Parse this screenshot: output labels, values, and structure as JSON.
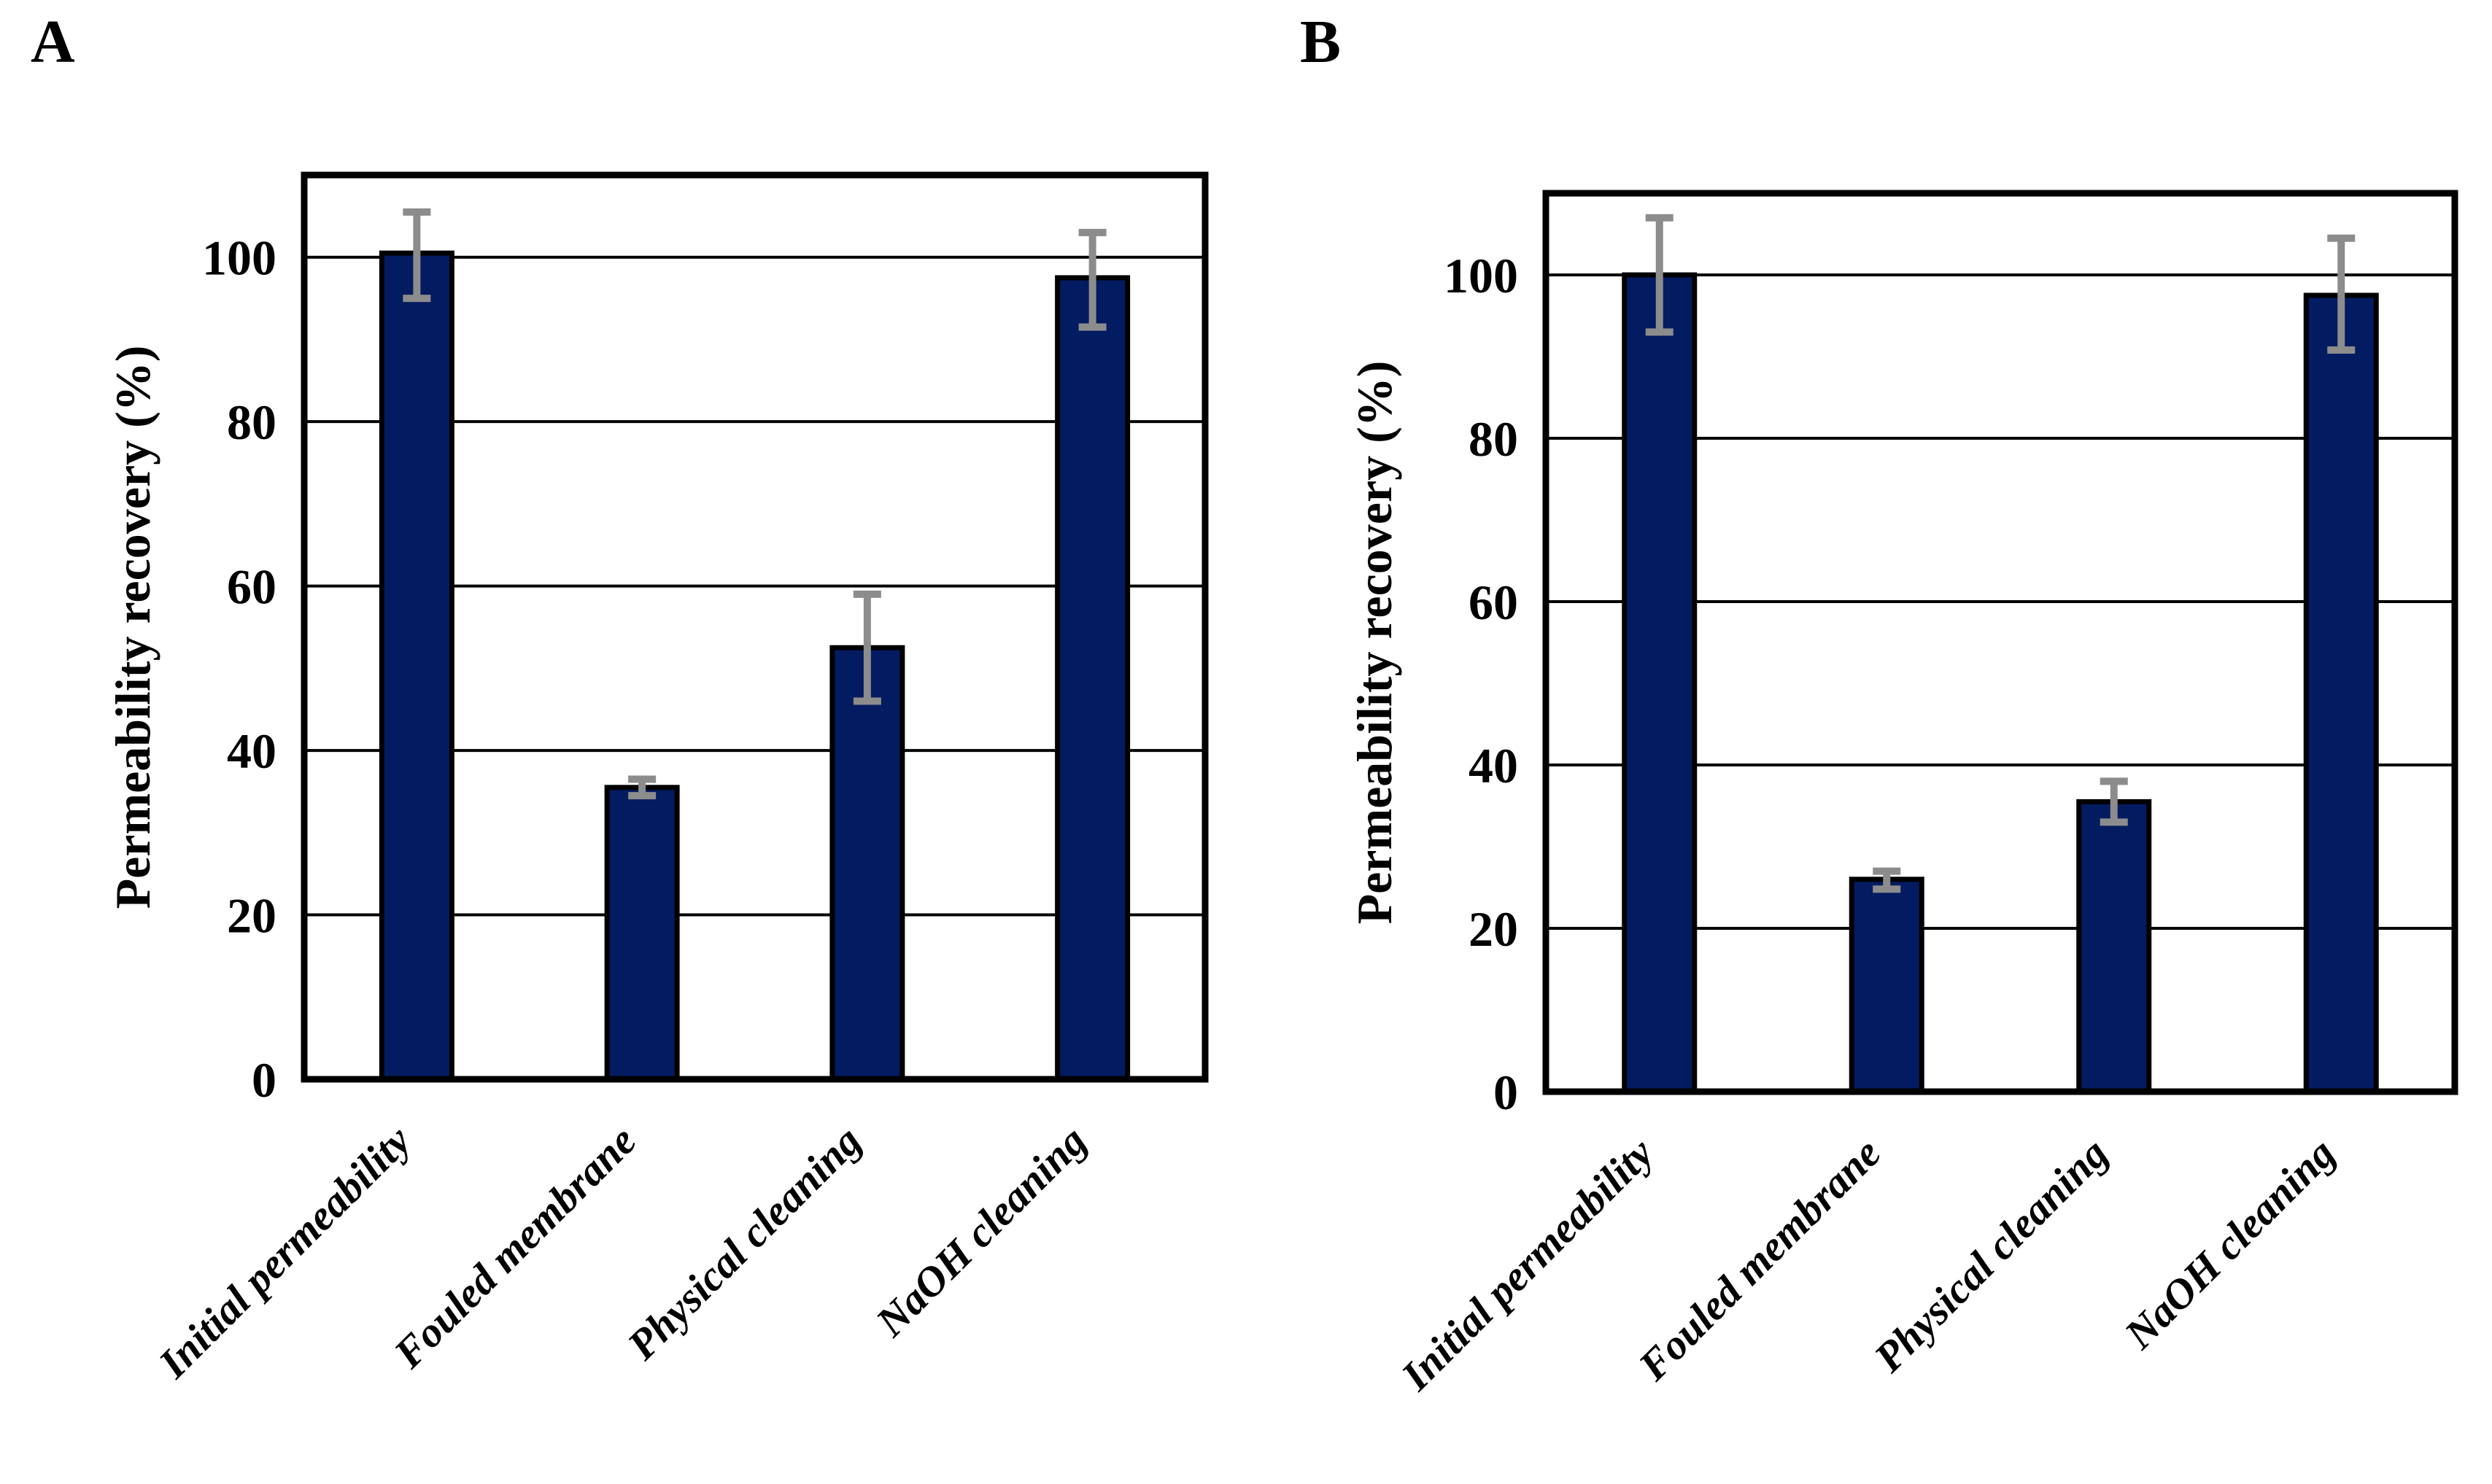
{
  "figure": {
    "description": "Two-panel bar figure of permeability recovery before and after membrane cleaning",
    "background_color": "#FFFFFF",
    "text_color": "#000000"
  },
  "chart_data": [
    {
      "type": "bar",
      "panel_label": "A",
      "title": "",
      "xlabel": "",
      "ylabel": "Permeability recovery (%)",
      "categories": [
        "Initial permeability",
        "Fouled membrane",
        "Physical cleaning",
        "NaOH cleaning"
      ],
      "values": [
        100.5,
        35.5,
        52.5,
        97.5
      ],
      "error_up": [
        5,
        1,
        6.5,
        5.5
      ],
      "error_down": [
        5.5,
        1,
        6.5,
        6
      ],
      "ylim": [
        0,
        110
      ],
      "yticks": [
        0,
        20,
        40,
        60,
        80,
        100
      ],
      "grid": true,
      "legend": false,
      "bar_color": "#031B60",
      "bar_border_color": "#000000",
      "error_bar_color": "#8C8C8C",
      "frame_color": "#000000",
      "x_label_rotation_deg": -45
    },
    {
      "type": "bar",
      "panel_label": "B",
      "title": "",
      "xlabel": "",
      "ylabel": "Permeability recovery (%)",
      "categories": [
        "Initial permeability",
        "Fouled membrane",
        "Physical cleaning",
        "NaOH cleaning"
      ],
      "values": [
        100,
        26,
        35.5,
        97.5
      ],
      "error_up": [
        7,
        1,
        2.5,
        7
      ],
      "error_down": [
        7,
        1.2,
        2.5,
        6.7
      ],
      "ylim": [
        0,
        110
      ],
      "yticks": [
        0,
        20,
        40,
        60,
        80,
        100
      ],
      "grid": true,
      "legend": false,
      "bar_color": "#031B60",
      "bar_border_color": "#000000",
      "error_bar_color": "#8C8C8C",
      "frame_color": "#000000",
      "x_label_rotation_deg": -45
    }
  ]
}
